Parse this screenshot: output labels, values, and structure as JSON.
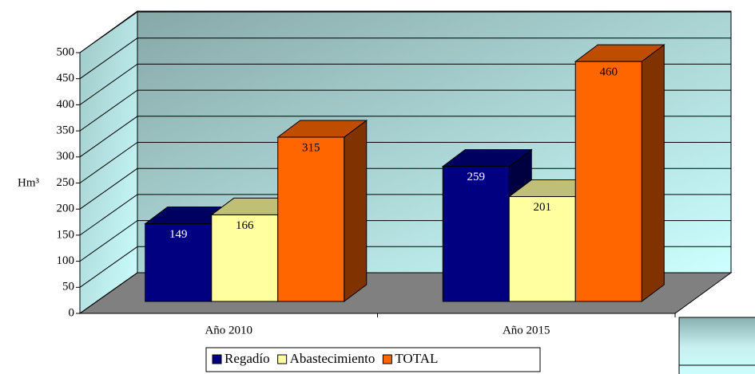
{
  "chart_data": {
    "type": "bar3d",
    "y_label": "Hm³",
    "categories": [
      "Año 2010",
      "Año 2015"
    ],
    "series": [
      {
        "name": "Regadío",
        "color": "#000080",
        "values": [
          149,
          259
        ]
      },
      {
        "name": "Abastecimiento",
        "color": "#ffffa0",
        "values": [
          166,
          201
        ]
      },
      {
        "name": "TOTAL",
        "color": "#ff6600",
        "values": [
          315,
          460
        ]
      }
    ],
    "ylim": [
      0,
      500
    ],
    "yticks": [
      0,
      50,
      100,
      150,
      200,
      250,
      300,
      350,
      400,
      450,
      500
    ],
    "grid": true,
    "legend": "bottom"
  }
}
